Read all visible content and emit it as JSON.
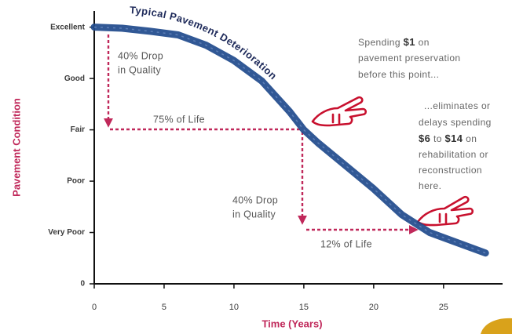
{
  "chart_data": {
    "type": "line",
    "title": "Typical Pavement Deterioration",
    "x_label": "Time (Years)",
    "y_label": "Pavement Condition",
    "color": "#1f4a8c",
    "x": [
      0,
      2,
      4,
      6,
      8,
      10,
      12,
      14,
      15,
      16,
      18,
      20,
      22,
      24,
      26,
      28
    ],
    "values": [
      5.0,
      4.98,
      4.92,
      4.85,
      4.65,
      4.35,
      3.95,
      3.35,
      3.0,
      2.75,
      2.3,
      1.85,
      1.35,
      1.0,
      0.8,
      0.6
    ],
    "xlim": [
      0,
      29
    ],
    "ylim": [
      0,
      5.3
    ],
    "xticks": [
      0,
      5,
      10,
      15,
      20,
      25
    ],
    "yticks": [
      0,
      {
        "value": 1,
        "label": "Very Poor"
      },
      {
        "value": 2,
        "label": "Poor"
      },
      {
        "value": 3,
        "label": "Fair"
      },
      {
        "value": 4,
        "label": "Good"
      },
      {
        "value": 5,
        "label": "Excellent"
      }
    ],
    "annotations": {
      "first_drop": [
        "40% Drop",
        "in Quality"
      ],
      "first_life": "75% of Life",
      "second_drop": [
        "40% Drop",
        "in Quality"
      ],
      "second_life": "12% of Life",
      "spend_before": [
        [
          "Spending",
          "$1",
          "on"
        ],
        [
          "pavement preservation"
        ],
        [
          "before this point..."
        ]
      ],
      "spend_after": [
        [
          "...eliminates or"
        ],
        [
          "delays spending"
        ],
        [
          "$6",
          "to",
          "$14",
          "on"
        ],
        [
          "rehabilitation or"
        ],
        [
          "reconstruction"
        ],
        [
          "here."
        ]
      ]
    }
  }
}
